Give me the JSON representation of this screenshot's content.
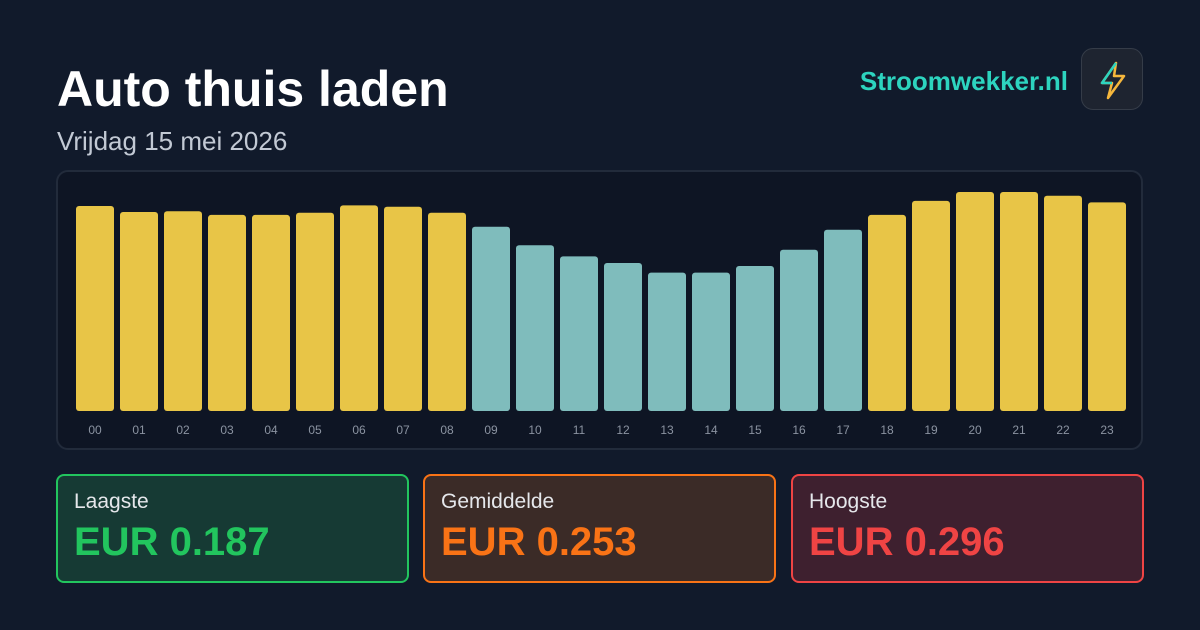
{
  "header": {
    "title": "Auto thuis laden",
    "subtitle": "Vrijdag 15 mei 2026",
    "brand": "Stroomwekker.nl"
  },
  "chart_data": {
    "type": "bar",
    "categories": [
      "00",
      "01",
      "02",
      "03",
      "04",
      "05",
      "06",
      "07",
      "08",
      "09",
      "10",
      "11",
      "12",
      "13",
      "14",
      "15",
      "16",
      "17",
      "18",
      "19",
      "20",
      "21",
      "22",
      "23"
    ],
    "values": [
      0.277,
      0.269,
      0.27,
      0.265,
      0.265,
      0.268,
      0.278,
      0.276,
      0.268,
      0.249,
      0.224,
      0.209,
      0.2,
      0.187,
      0.187,
      0.196,
      0.218,
      0.245,
      0.265,
      0.284,
      0.296,
      0.296,
      0.291,
      0.282
    ],
    "ylim": [
      0,
      0.296
    ],
    "threshold": 0.253,
    "color_above": "#e8c547",
    "color_below": "#7fbcbc"
  },
  "cards": [
    {
      "label": "Laagste",
      "value": "EUR 0.187"
    },
    {
      "label": "Gemiddelde",
      "value": "EUR 0.253"
    },
    {
      "label": "Hoogste",
      "value": "EUR 0.296"
    }
  ]
}
